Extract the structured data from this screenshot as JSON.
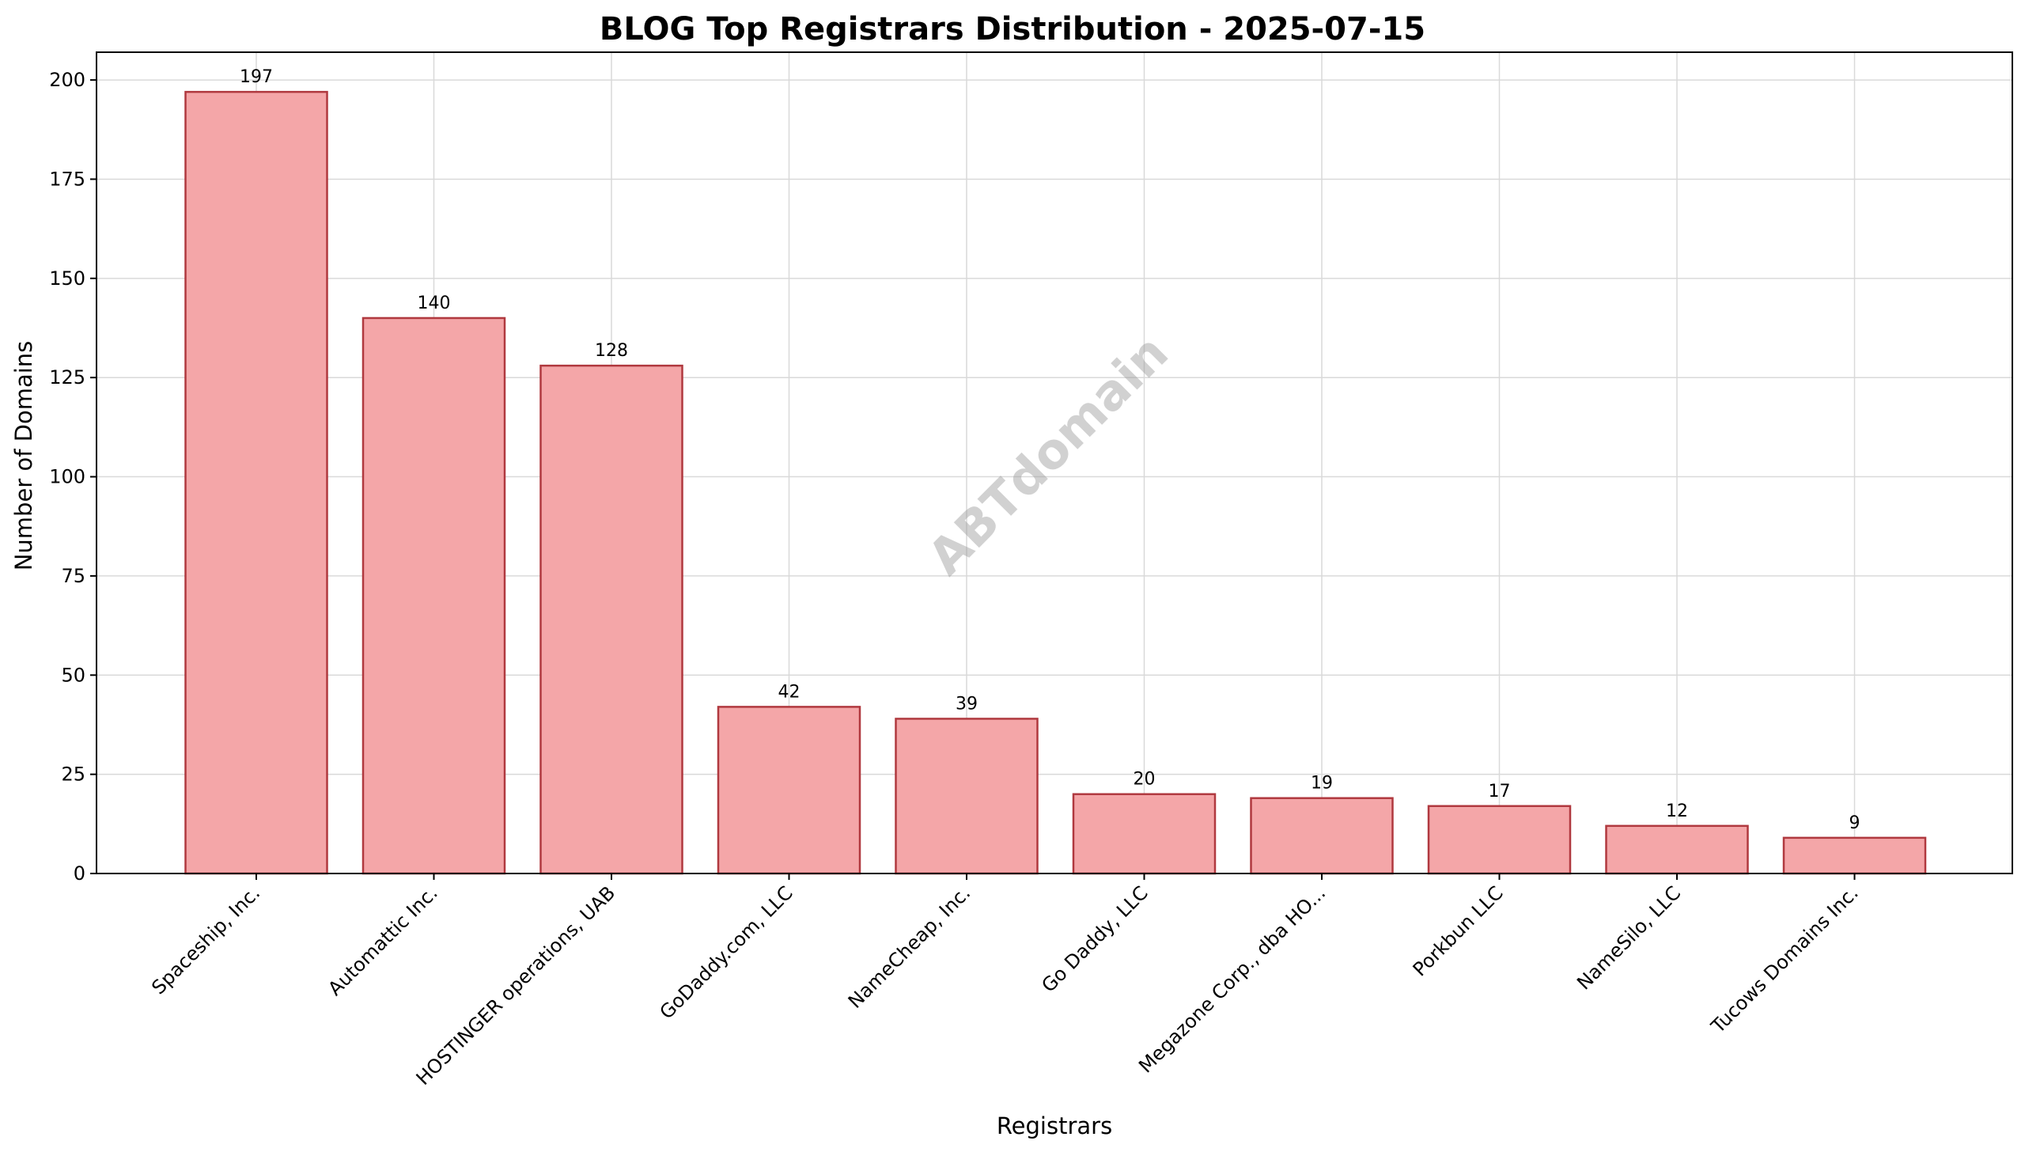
{
  "chart_data": {
    "type": "bar",
    "title": "BLOG Top Registrars Distribution - 2025-07-15",
    "xlabel": "Registrars",
    "ylabel": "Number of Domains",
    "categories": [
      "Spaceship, Inc.",
      "Automattic Inc.",
      "HOSTINGER operations, UAB",
      "GoDaddy.com, LLC",
      "NameCheap, Inc.",
      "Go Daddy, LLC",
      "Megazone Corp., dba HO...",
      "Porkbun LLC",
      "NameSilo, LLC",
      "Tucows Domains Inc."
    ],
    "values": [
      197,
      140,
      128,
      42,
      39,
      20,
      19,
      17,
      12,
      9
    ],
    "ylim": [
      0,
      207
    ],
    "yticks": [
      0,
      25,
      50,
      75,
      100,
      125,
      150,
      175,
      200
    ],
    "grid": true,
    "watermark": "ABTdomain",
    "colors": {
      "bar_fill": "#f4a6a8",
      "bar_edge": "#b0393f"
    }
  }
}
